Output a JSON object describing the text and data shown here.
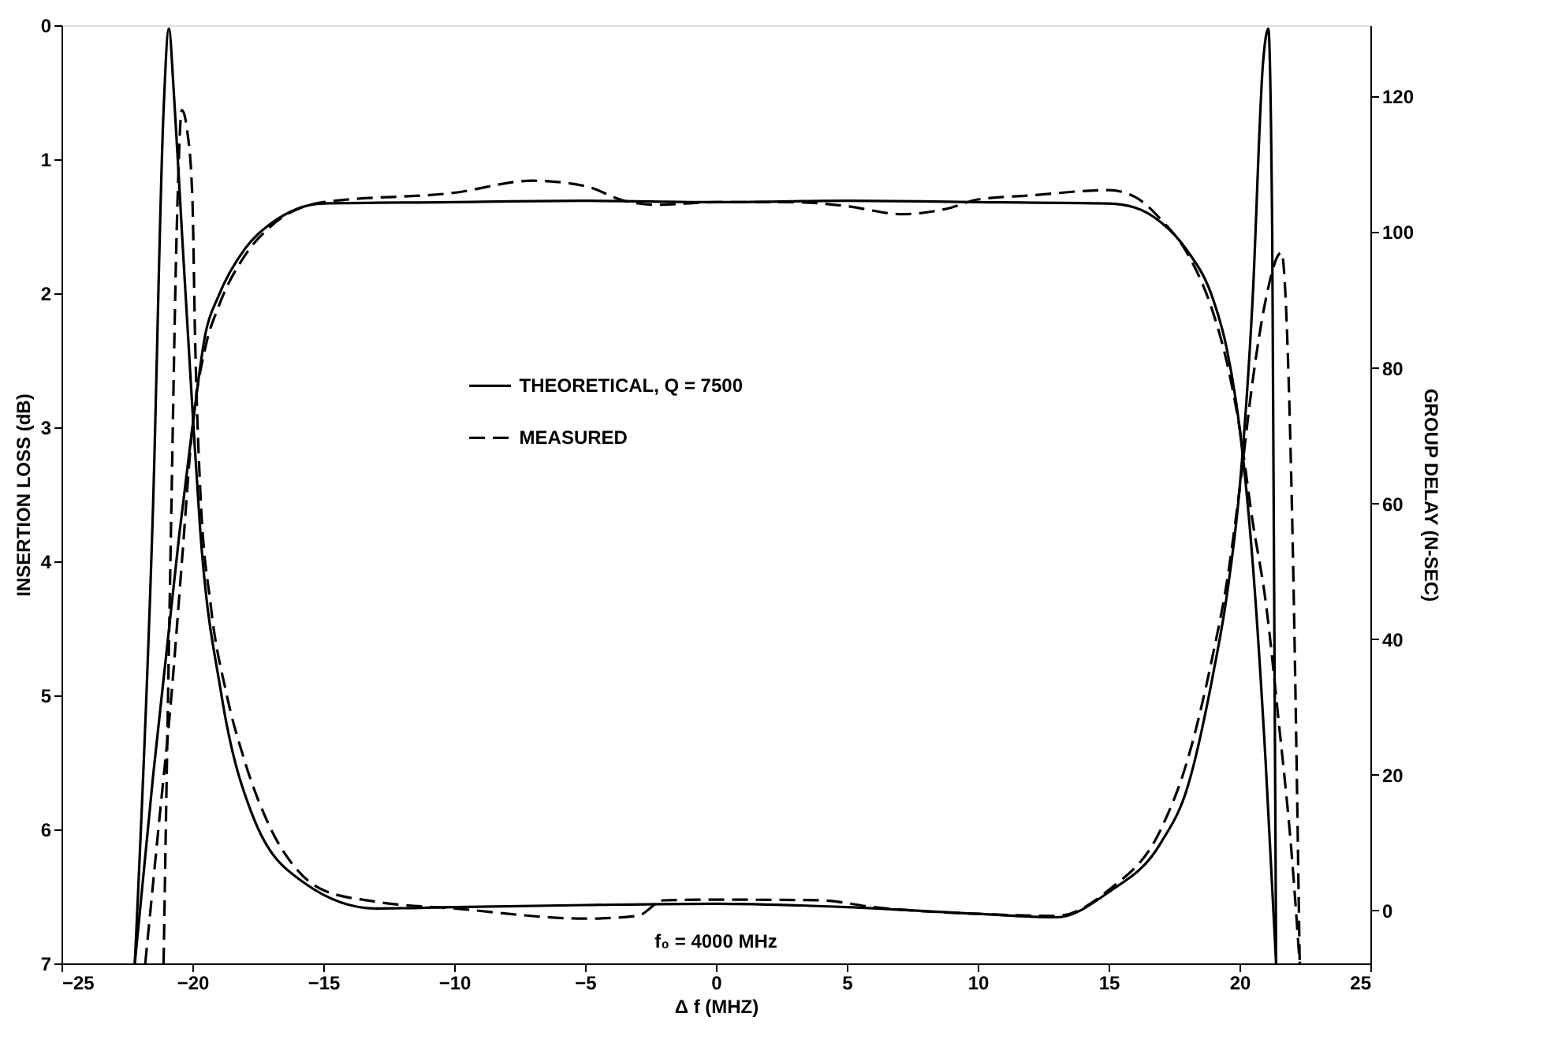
{
  "chart_data": {
    "type": "line",
    "xlabel": "Δ f (MHZ)",
    "ylabel": "INSERTION LOSS (dB)",
    "y2label": "GROUP DELAY (N-SEC)",
    "xlim": [
      -25,
      25
    ],
    "xticks": [
      -25,
      -20,
      -15,
      -10,
      -5,
      0,
      5,
      10,
      15,
      20,
      25
    ],
    "ylim": [
      7,
      0
    ],
    "yticks": [
      0,
      1,
      2,
      3,
      4,
      5,
      6,
      7
    ],
    "y2lim": [
      -7.8,
      130.5
    ],
    "y2ticks": [
      0,
      20,
      40,
      60,
      80,
      100,
      120
    ],
    "grid": false,
    "legend": "center",
    "annotations": [
      "f₀ = 4000 MHz"
    ],
    "series": [
      {
        "name": "THEORETICAL, Q = 7500",
        "color": "#000000",
        "line_style": "solid",
        "x": [
          -22.2,
          -21.5,
          -21,
          -20.5,
          -20,
          -19.5,
          -19,
          -18,
          -17,
          -16,
          -15,
          -10,
          -5,
          0,
          5,
          10,
          15,
          16,
          17,
          18,
          19,
          19.5,
          20,
          20.5,
          21,
          21.4
        ],
        "values": [
          7,
          5.6,
          4.7,
          3.8,
          3.0,
          2.3,
          2.02,
          1.67,
          1.48,
          1.37,
          1.33,
          1.32,
          1.31,
          1.32,
          1.31,
          1.32,
          1.33,
          1.36,
          1.47,
          1.68,
          2.05,
          2.4,
          3.0,
          4.0,
          5.5,
          7
        ]
      },
      {
        "name": "MEASURED",
        "color": "#000000",
        "line_style": "dashed",
        "x": [
          -21.8,
          -21.3,
          -20.8,
          -20.4,
          -20,
          -19.5,
          -19,
          -18,
          -17,
          -15,
          -10,
          -7,
          -5,
          -3.5,
          -2.3,
          0,
          3,
          5,
          7.1,
          9,
          10,
          12,
          15,
          16,
          17,
          18,
          19,
          19.5,
          20,
          20.5,
          21,
          21.5,
          22,
          22.3
        ],
        "values": [
          7,
          6.0,
          5.0,
          4.0,
          3.0,
          2.4,
          2.1,
          1.72,
          1.5,
          1.32,
          1.25,
          1.16,
          1.2,
          1.31,
          1.34,
          1.32,
          1.32,
          1.35,
          1.41,
          1.36,
          1.3,
          1.27,
          1.23,
          1.28,
          1.45,
          1.7,
          2.15,
          2.5,
          3.0,
          3.7,
          4.3,
          5.2,
          6.2,
          7
        ]
      },
      {
        "color": "#000000",
        "line_style": "solid",
        "axis": "y2",
        "x": [
          -22.2,
          -21.5,
          -21.1,
          -20.9,
          -20.7,
          -20.4,
          -20,
          -19.7,
          -18.9,
          -17.7,
          -15.7,
          -13,
          -10,
          -5,
          0,
          5,
          10,
          13,
          15,
          17,
          18,
          19,
          19.5,
          20,
          20.5,
          20.9,
          21.1,
          21.25,
          21.4
        ],
        "values": [
          -7.8,
          60,
          118,
          130,
          120,
          100,
          74,
          56,
          32,
          14,
          4,
          0.3,
          0.5,
          0.8,
          1,
          0.5,
          -0.5,
          -1,
          2.7,
          10,
          18,
          35,
          46,
          62,
          90,
          125,
          130,
          100,
          -7.8
        ]
      },
      {
        "color": "#000000",
        "line_style": "dashed",
        "axis": "y2",
        "x": [
          -21.1,
          -20.8,
          -20.6,
          -20.4,
          -20.2,
          -20,
          -19.9,
          -19.7,
          -19.3,
          -18.7,
          -18,
          -17,
          -16,
          -15,
          -13,
          -10,
          -5,
          -3,
          -2,
          0,
          4,
          6,
          10,
          13,
          15,
          17,
          18,
          19,
          19.5,
          20,
          20.5,
          21,
          21.6,
          22,
          22.3
        ],
        "values": [
          -7.8,
          60,
          100,
          118,
          115,
          105,
          85,
          62,
          45,
          32,
          22,
          12,
          6,
          3,
          1.3,
          0.3,
          -1.2,
          -0.8,
          1.5,
          1.6,
          1.5,
          0.5,
          -0.5,
          -0.8,
          3,
          12,
          22,
          38,
          48,
          62,
          78,
          90,
          97,
          60,
          -7.8
        ]
      }
    ]
  }
}
